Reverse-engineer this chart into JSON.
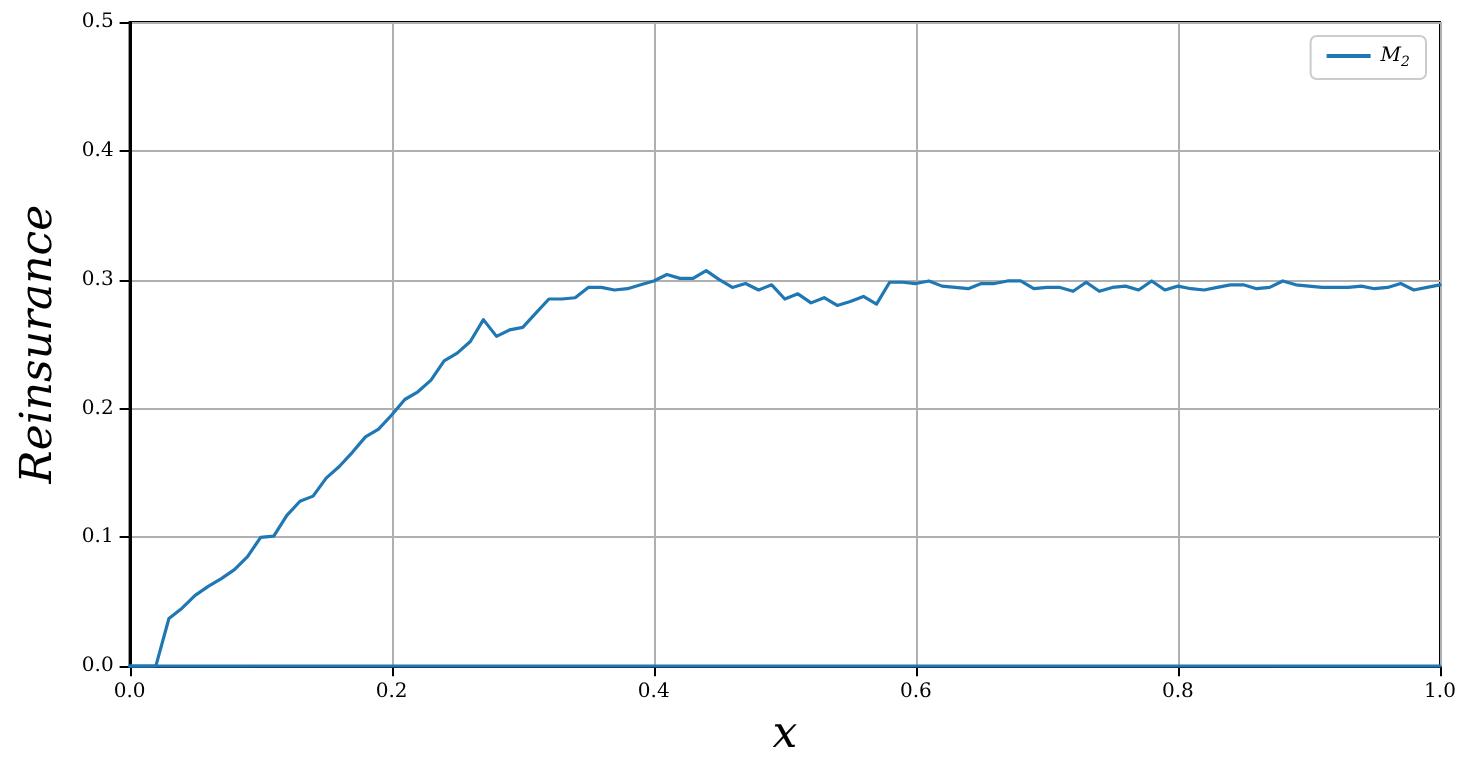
{
  "chart_data": {
    "type": "line",
    "xlabel": "x",
    "ylabel": "Reinsurance",
    "xlim": [
      0,
      1
    ],
    "ylim": [
      0,
      0.5
    ],
    "xticks": [
      {
        "value": 0,
        "label": "0.0"
      },
      {
        "value": 0.2,
        "label": "0.2"
      },
      {
        "value": 0.4,
        "label": "0.4"
      },
      {
        "value": 0.6,
        "label": "0.6"
      },
      {
        "value": 0.8,
        "label": "0.8"
      },
      {
        "value": 1,
        "label": "1.0"
      }
    ],
    "yticks": [
      {
        "value": 0,
        "label": "0.0"
      },
      {
        "value": 0.1,
        "label": "0.1"
      },
      {
        "value": 0.2,
        "label": "0.2"
      },
      {
        "value": 0.3,
        "label": "0.3"
      },
      {
        "value": 0.4,
        "label": "0.4"
      },
      {
        "value": 0.5,
        "label": "0.5"
      }
    ],
    "grid": true,
    "legend": "top right",
    "marker": "none",
    "line_style": "solid",
    "x": [
      0,
      0.01,
      0.02,
      0.03,
      0.04,
      0.05,
      0.06,
      0.07,
      0.08,
      0.09,
      0.1,
      0.11,
      0.12,
      0.13,
      0.14,
      0.15,
      0.16,
      0.17,
      0.18,
      0.19,
      0.2,
      0.21,
      0.22,
      0.23,
      0.24,
      0.25,
      0.26,
      0.27,
      0.28,
      0.29,
      0.3,
      0.31,
      0.32,
      0.33,
      0.34,
      0.35,
      0.36,
      0.37,
      0.38,
      0.39,
      0.4,
      0.41,
      0.42,
      0.43,
      0.44,
      0.45,
      0.46,
      0.47,
      0.48,
      0.49,
      0.5,
      0.51,
      0.52,
      0.53,
      0.54,
      0.55,
      0.56,
      0.57,
      0.58,
      0.59,
      0.6,
      0.61,
      0.62,
      0.63,
      0.64,
      0.65,
      0.66,
      0.67,
      0.68,
      0.69,
      0.7,
      0.71,
      0.72,
      0.73,
      0.74,
      0.75,
      0.76,
      0.77,
      0.78,
      0.79,
      0.8,
      0.81,
      0.82,
      0.83,
      0.84,
      0.85,
      0.86,
      0.87,
      0.88,
      0.89,
      0.9,
      0.91,
      0.92,
      0.93,
      0.94,
      0.95,
      0.96,
      0.97,
      0.98,
      0.99,
      1
    ],
    "series": [
      {
        "name": "M$_{2}$",
        "color": "#1f77b4",
        "values": [
          0,
          0,
          0,
          0.037,
          0.045,
          0.055,
          0.062,
          0.068,
          0.075,
          0.085,
          0.1,
          0.101,
          0.117,
          0.128,
          0.132,
          0.146,
          0.155,
          0.166,
          0.178,
          0.184,
          0.195,
          0.207,
          0.213,
          0.222,
          0.237,
          0.243,
          0.252,
          0.269,
          0.256,
          0.261,
          0.263,
          0.274,
          0.285,
          0.285,
          0.286,
          0.294,
          0.294,
          0.292,
          0.293,
          0.296,
          0.299,
          0.304,
          0.301,
          0.301,
          0.307,
          0.3,
          0.294,
          0.297,
          0.292,
          0.296,
          0.285,
          0.289,
          0.282,
          0.286,
          0.28,
          0.283,
          0.287,
          0.281,
          0.298,
          0.298,
          0.297,
          0.299,
          0.295,
          0.294,
          0.293,
          0.297,
          0.297,
          0.299,
          0.299,
          0.293,
          0.294,
          0.294,
          0.291,
          0.298,
          0.291,
          0.294,
          0.295,
          0.292,
          0.299,
          0.292,
          0.295,
          0.293,
          0.292,
          0.294,
          0.296,
          0.296,
          0.293,
          0.294,
          0.299,
          0.296,
          0.295,
          0.294,
          0.294,
          0.294,
          0.295,
          0.293,
          0.294,
          0.297,
          0.292,
          0.294,
          0.296
        ]
      },
      {
        "color": "#1f77b4",
        "x": [
          0,
          1
        ],
        "values": [
          0,
          0
        ]
      }
    ]
  }
}
